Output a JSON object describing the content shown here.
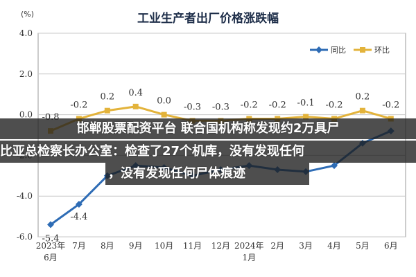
{
  "chart_data": {
    "type": "line",
    "title": "工业生产者出厂价格涨跌幅",
    "ylabel": "(%)",
    "categories": [
      "2023年\n6月",
      "7月",
      "8月",
      "9月",
      "10月",
      "11月",
      "12月",
      "2024年\n1月",
      "2月",
      "3月",
      "4月",
      "5月",
      "6月"
    ],
    "yticks": [
      "4.0",
      "2.0",
      "0.0",
      "-2.0",
      "-4.0",
      "-6.0"
    ],
    "ylim": [
      -6.0,
      4.0
    ],
    "grid": true,
    "legend_position": "top-right",
    "series": [
      {
        "name": "同比",
        "color": "#2e6cb5",
        "values": [
          -5.4,
          -4.4,
          -3.0,
          -2.5,
          -2.6,
          -3.0,
          -2.7,
          -2.5,
          -2.7,
          -2.8,
          -2.5,
          -1.4,
          -0.8
        ],
        "labels": [
          "-5.4",
          "-4.4",
          "",
          "",
          "",
          "",
          "",
          "",
          "",
          "",
          "",
          "",
          ""
        ]
      },
      {
        "name": "环比",
        "color": "#e3b33b",
        "values": [
          -0.8,
          -0.2,
          0.2,
          0.4,
          0.0,
          -0.3,
          -0.3,
          -0.2,
          -0.2,
          -0.1,
          -0.2,
          0.2,
          -0.2
        ],
        "labels": [
          "-0.8",
          "-0.2",
          "0.2",
          "0.4",
          "0.0",
          "-0.3",
          "-0.3",
          "-0.2",
          "-0.2",
          "-0.1",
          "-0.2",
          "0.2",
          "-0.2"
        ]
      }
    ]
  },
  "overlay": {
    "line1": "邯郸股票配资平台 联合国机构称发现约2万具尸",
    "line2": "比亚总检察长办公室：检查了27个机库，没有发现任何",
    "line3": "，没有发现任何尸体痕迹"
  }
}
